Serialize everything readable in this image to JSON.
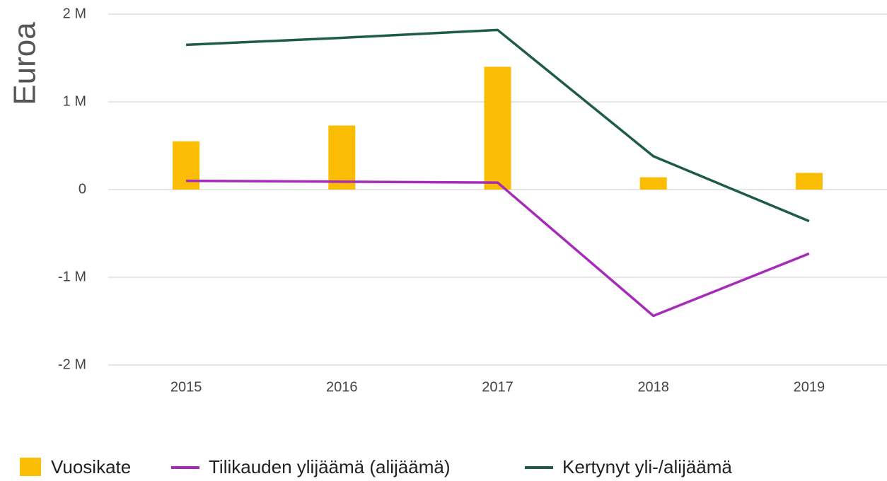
{
  "chart_data": {
    "type": "combo",
    "y_label": "Euroa",
    "categories": [
      "2015",
      "2016",
      "2017",
      "2018",
      "2019"
    ],
    "series": [
      {
        "name": "Vuosikate",
        "type": "bar",
        "color": "#fbbc04",
        "values": [
          550000,
          730000,
          1400000,
          140000,
          190000
        ]
      },
      {
        "name": "Tilikauden ylijäämä (alijäämä)",
        "type": "line",
        "color": "#a52bb8",
        "values": [
          100000,
          90000,
          80000,
          -1440000,
          -730000
        ]
      },
      {
        "name": "Kertynyt yli-/alijäämä",
        "type": "line",
        "color": "#1e5c44",
        "values": [
          1650000,
          1730000,
          1820000,
          380000,
          -360000
        ]
      }
    ],
    "ylim": [
      -2000000,
      2000000
    ],
    "yticks": [
      {
        "value": -2000000,
        "label": "-2 M"
      },
      {
        "value": -1000000,
        "label": "-1 M"
      },
      0,
      {
        "value": 1000000,
        "label": "1 M"
      },
      {
        "value": 2000000,
        "label": "2 M"
      }
    ],
    "grid": true,
    "legend": "bottom"
  }
}
